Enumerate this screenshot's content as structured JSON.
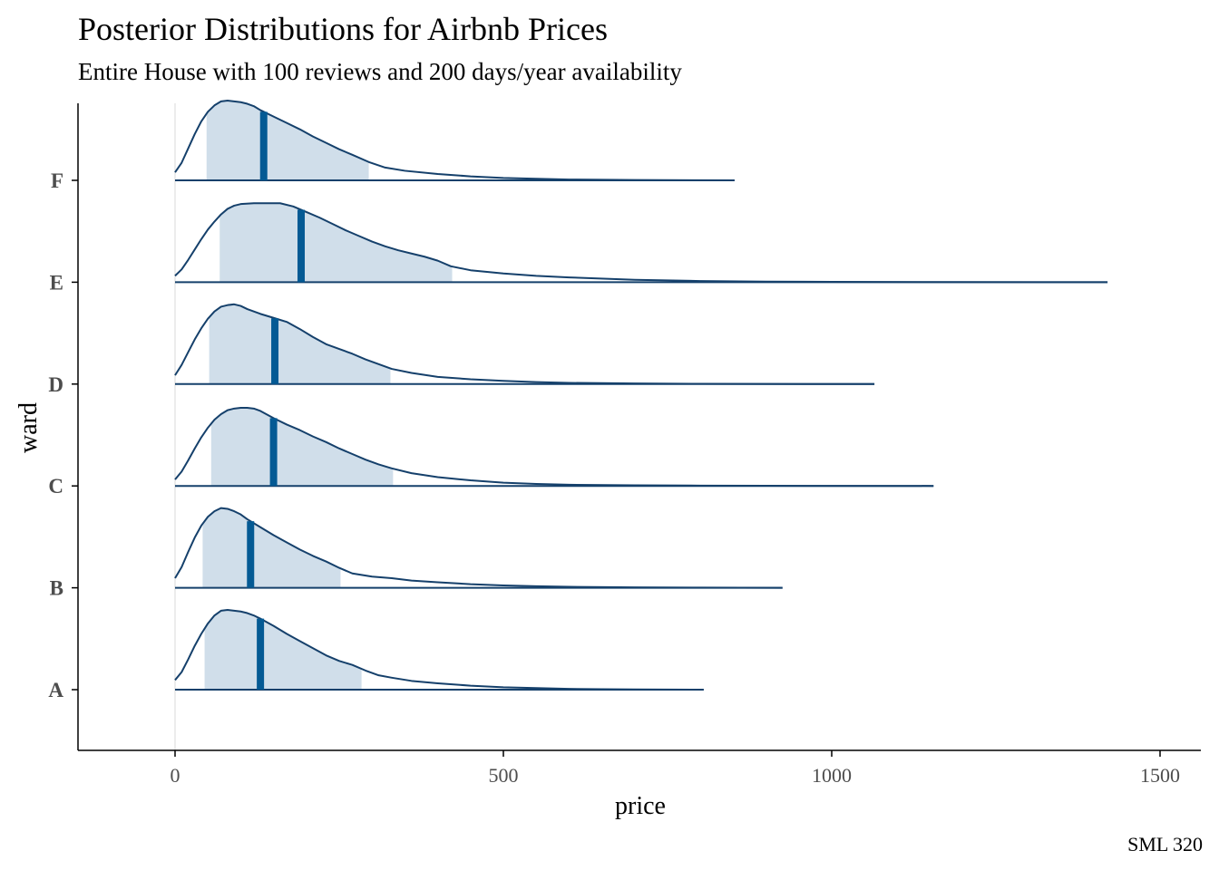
{
  "chart_data": {
    "type": "ridgeline",
    "title": "Posterior Distributions for Airbnb Prices",
    "subtitle": "Entire House with 100 reviews and 200 days/year availability",
    "xlabel": "price",
    "ylabel": "ward",
    "caption": "SML 320",
    "xlim": [
      -150,
      1565
    ],
    "xticks": [
      0,
      500,
      1000,
      1500
    ],
    "xtick_labels": [
      "0",
      "500",
      "1000",
      "1500"
    ],
    "reference_line_x": 0,
    "colors": {
      "density_line": "#15406b",
      "interval_fill": "#d0deea",
      "median_bar": "#045a94",
      "zero_line": "#e6e6e6",
      "axis": "#000000"
    },
    "series": [
      {
        "name": "A",
        "median": 130,
        "interval": [
          45,
          284
        ],
        "max": 805,
        "density": [
          [
            0,
            0.12
          ],
          [
            10,
            0.22
          ],
          [
            20,
            0.38
          ],
          [
            30,
            0.55
          ],
          [
            40,
            0.7
          ],
          [
            50,
            0.83
          ],
          [
            60,
            0.93
          ],
          [
            70,
            0.99
          ],
          [
            80,
            1.0
          ],
          [
            90,
            0.99
          ],
          [
            100,
            0.98
          ],
          [
            110,
            0.96
          ],
          [
            120,
            0.93
          ],
          [
            130,
            0.89
          ],
          [
            150,
            0.8
          ],
          [
            170,
            0.7
          ],
          [
            190,
            0.61
          ],
          [
            210,
            0.52
          ],
          [
            230,
            0.43
          ],
          [
            250,
            0.36
          ],
          [
            270,
            0.31
          ],
          [
            290,
            0.24
          ],
          [
            310,
            0.18
          ],
          [
            330,
            0.15
          ],
          [
            360,
            0.11
          ],
          [
            400,
            0.08
          ],
          [
            450,
            0.05
          ],
          [
            500,
            0.03
          ],
          [
            550,
            0.02
          ],
          [
            600,
            0.01
          ],
          [
            650,
            0.006
          ],
          [
            700,
            0.003
          ],
          [
            805,
            0
          ]
        ]
      },
      {
        "name": "B",
        "median": 115,
        "interval": [
          42,
          252
        ],
        "max": 925,
        "density": [
          [
            0,
            0.12
          ],
          [
            10,
            0.26
          ],
          [
            20,
            0.45
          ],
          [
            30,
            0.63
          ],
          [
            40,
            0.78
          ],
          [
            50,
            0.89
          ],
          [
            60,
            0.96
          ],
          [
            70,
            1.0
          ],
          [
            80,
            0.99
          ],
          [
            90,
            0.96
          ],
          [
            100,
            0.92
          ],
          [
            110,
            0.86
          ],
          [
            130,
            0.76
          ],
          [
            150,
            0.66
          ],
          [
            170,
            0.57
          ],
          [
            190,
            0.48
          ],
          [
            210,
            0.4
          ],
          [
            230,
            0.33
          ],
          [
            250,
            0.25
          ],
          [
            270,
            0.18
          ],
          [
            300,
            0.14
          ],
          [
            330,
            0.12
          ],
          [
            360,
            0.09
          ],
          [
            400,
            0.07
          ],
          [
            450,
            0.045
          ],
          [
            500,
            0.03
          ],
          [
            550,
            0.02
          ],
          [
            600,
            0.012
          ],
          [
            700,
            0.006
          ],
          [
            800,
            0.002
          ],
          [
            925,
            0
          ]
        ]
      },
      {
        "name": "C",
        "median": 150,
        "interval": [
          55,
          332
        ],
        "max": 1155,
        "density": [
          [
            0,
            0.08
          ],
          [
            10,
            0.18
          ],
          [
            20,
            0.32
          ],
          [
            30,
            0.47
          ],
          [
            40,
            0.61
          ],
          [
            50,
            0.73
          ],
          [
            60,
            0.83
          ],
          [
            70,
            0.9
          ],
          [
            80,
            0.95
          ],
          [
            90,
            0.97
          ],
          [
            100,
            0.98
          ],
          [
            110,
            0.98
          ],
          [
            120,
            0.97
          ],
          [
            130,
            0.94
          ],
          [
            150,
            0.85
          ],
          [
            170,
            0.77
          ],
          [
            190,
            0.7
          ],
          [
            210,
            0.62
          ],
          [
            230,
            0.55
          ],
          [
            250,
            0.47
          ],
          [
            270,
            0.4
          ],
          [
            290,
            0.33
          ],
          [
            310,
            0.27
          ],
          [
            330,
            0.22
          ],
          [
            360,
            0.16
          ],
          [
            400,
            0.11
          ],
          [
            450,
            0.07
          ],
          [
            500,
            0.04
          ],
          [
            550,
            0.025
          ],
          [
            600,
            0.015
          ],
          [
            700,
            0.008
          ],
          [
            800,
            0.004
          ],
          [
            900,
            0.002
          ],
          [
            1155,
            0
          ]
        ]
      },
      {
        "name": "D",
        "median": 152,
        "interval": [
          52,
          328
        ],
        "max": 1065,
        "density": [
          [
            0,
            0.11
          ],
          [
            10,
            0.24
          ],
          [
            20,
            0.4
          ],
          [
            30,
            0.56
          ],
          [
            40,
            0.7
          ],
          [
            50,
            0.82
          ],
          [
            60,
            0.91
          ],
          [
            70,
            0.97
          ],
          [
            80,
            0.99
          ],
          [
            90,
            1.0
          ],
          [
            100,
            0.98
          ],
          [
            110,
            0.94
          ],
          [
            130,
            0.88
          ],
          [
            150,
            0.83
          ],
          [
            170,
            0.78
          ],
          [
            190,
            0.69
          ],
          [
            210,
            0.59
          ],
          [
            230,
            0.5
          ],
          [
            250,
            0.44
          ],
          [
            270,
            0.38
          ],
          [
            290,
            0.31
          ],
          [
            310,
            0.25
          ],
          [
            330,
            0.19
          ],
          [
            360,
            0.14
          ],
          [
            400,
            0.09
          ],
          [
            450,
            0.06
          ],
          [
            500,
            0.04
          ],
          [
            550,
            0.025
          ],
          [
            600,
            0.015
          ],
          [
            700,
            0.007
          ],
          [
            800,
            0.003
          ],
          [
            1065,
            0
          ]
        ]
      },
      {
        "name": "E",
        "median": 192,
        "interval": [
          68,
          422
        ],
        "max": 1420,
        "density": [
          [
            0,
            0.08
          ],
          [
            10,
            0.16
          ],
          [
            20,
            0.28
          ],
          [
            30,
            0.41
          ],
          [
            40,
            0.54
          ],
          [
            50,
            0.66
          ],
          [
            60,
            0.76
          ],
          [
            70,
            0.85
          ],
          [
            80,
            0.92
          ],
          [
            90,
            0.96
          ],
          [
            100,
            0.98
          ],
          [
            120,
            0.99
          ],
          [
            140,
            0.99
          ],
          [
            160,
            0.99
          ],
          [
            180,
            0.95
          ],
          [
            200,
            0.88
          ],
          [
            220,
            0.81
          ],
          [
            240,
            0.73
          ],
          [
            260,
            0.65
          ],
          [
            280,
            0.58
          ],
          [
            300,
            0.51
          ],
          [
            320,
            0.45
          ],
          [
            340,
            0.4
          ],
          [
            360,
            0.36
          ],
          [
            380,
            0.32
          ],
          [
            400,
            0.27
          ],
          [
            420,
            0.2
          ],
          [
            450,
            0.15
          ],
          [
            500,
            0.11
          ],
          [
            550,
            0.08
          ],
          [
            600,
            0.06
          ],
          [
            700,
            0.03
          ],
          [
            800,
            0.015
          ],
          [
            900,
            0.008
          ],
          [
            1000,
            0.004
          ],
          [
            1150,
            0.002
          ],
          [
            1420,
            0
          ]
        ]
      },
      {
        "name": "F",
        "median": 135,
        "interval": [
          48,
          295
        ],
        "max": 852,
        "density": [
          [
            0,
            0.1
          ],
          [
            10,
            0.22
          ],
          [
            20,
            0.4
          ],
          [
            30,
            0.58
          ],
          [
            40,
            0.74
          ],
          [
            50,
            0.86
          ],
          [
            60,
            0.94
          ],
          [
            70,
            0.99
          ],
          [
            80,
            1.0
          ],
          [
            90,
            0.99
          ],
          [
            100,
            0.98
          ],
          [
            110,
            0.96
          ],
          [
            120,
            0.93
          ],
          [
            130,
            0.88
          ],
          [
            150,
            0.8
          ],
          [
            170,
            0.72
          ],
          [
            190,
            0.64
          ],
          [
            210,
            0.55
          ],
          [
            230,
            0.47
          ],
          [
            250,
            0.39
          ],
          [
            270,
            0.32
          ],
          [
            295,
            0.23
          ],
          [
            320,
            0.16
          ],
          [
            350,
            0.12
          ],
          [
            400,
            0.08
          ],
          [
            450,
            0.05
          ],
          [
            500,
            0.03
          ],
          [
            550,
            0.02
          ],
          [
            600,
            0.01
          ],
          [
            700,
            0.004
          ],
          [
            852,
            0
          ]
        ]
      }
    ]
  }
}
